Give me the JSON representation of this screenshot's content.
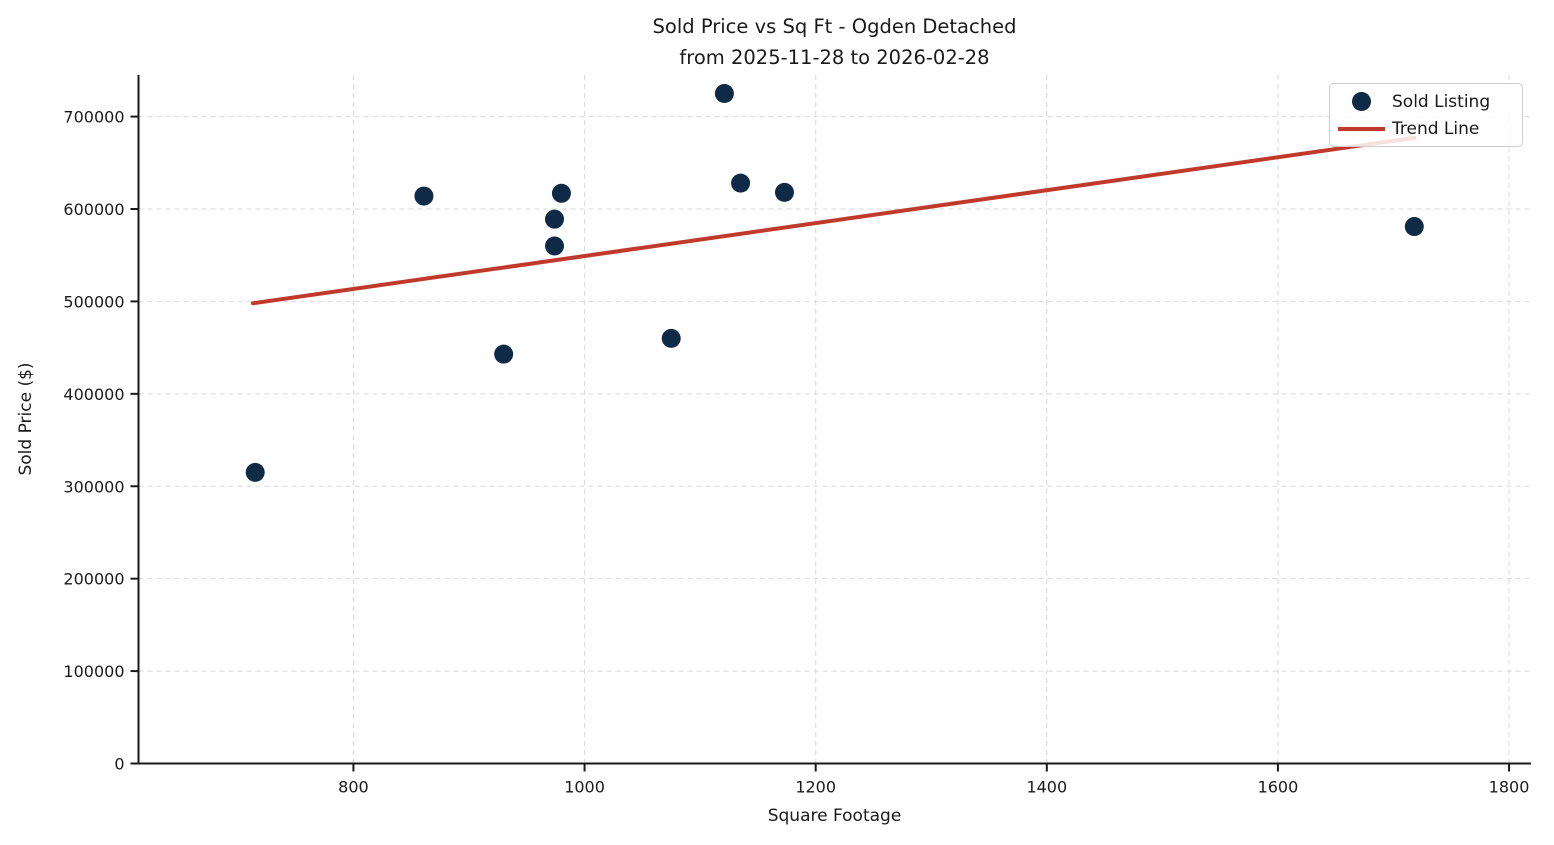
{
  "title": {
    "line1": "Sold Price vs Sq Ft - Ogden Detached",
    "line2": "from 2025-11-28 to 2026-02-28"
  },
  "axes": {
    "xlabel": "Square Footage",
    "ylabel": "Sold Price ($)"
  },
  "legend": {
    "items": [
      {
        "label": "Sold Listing",
        "marker": "dot-icon"
      },
      {
        "label": "Trend Line",
        "marker": "line-icon"
      }
    ]
  },
  "colors": {
    "point": "#0e2a47",
    "trend": "#c0392b",
    "grid": "#d9d9d9",
    "axis": "#1a1a1a",
    "legend_border": "#cccccc",
    "background": "#ffffff"
  },
  "chart_data": {
    "type": "scatter",
    "title": "Sold Price vs Sq Ft - Ogden Detached from 2025-11-28 to 2026-02-28",
    "xlabel": "Square Footage",
    "ylabel": "Sold Price ($)",
    "xlim": [
      614,
      1819
    ],
    "ylim": [
      0,
      745000
    ],
    "xticks": [
      800,
      1000,
      1200,
      1400,
      1600,
      1800
    ],
    "yticks": [
      0,
      100000,
      200000,
      300000,
      400000,
      500000,
      600000,
      700000
    ],
    "grid": true,
    "legend_position": "upper right",
    "series": [
      {
        "name": "Sold Listing",
        "type": "scatter",
        "points": [
          [
            715,
            315000
          ],
          [
            861,
            614000
          ],
          [
            930,
            443000
          ],
          [
            974,
            560000
          ],
          [
            974,
            589000
          ],
          [
            980,
            617000
          ],
          [
            1075,
            460000
          ],
          [
            1121,
            725000
          ],
          [
            1135,
            628000
          ],
          [
            1173,
            618000
          ],
          [
            1718,
            581000
          ]
        ]
      },
      {
        "name": "Trend Line",
        "type": "line",
        "points": [
          [
            713,
            498000
          ],
          [
            1718,
            677000
          ]
        ]
      }
    ]
  }
}
